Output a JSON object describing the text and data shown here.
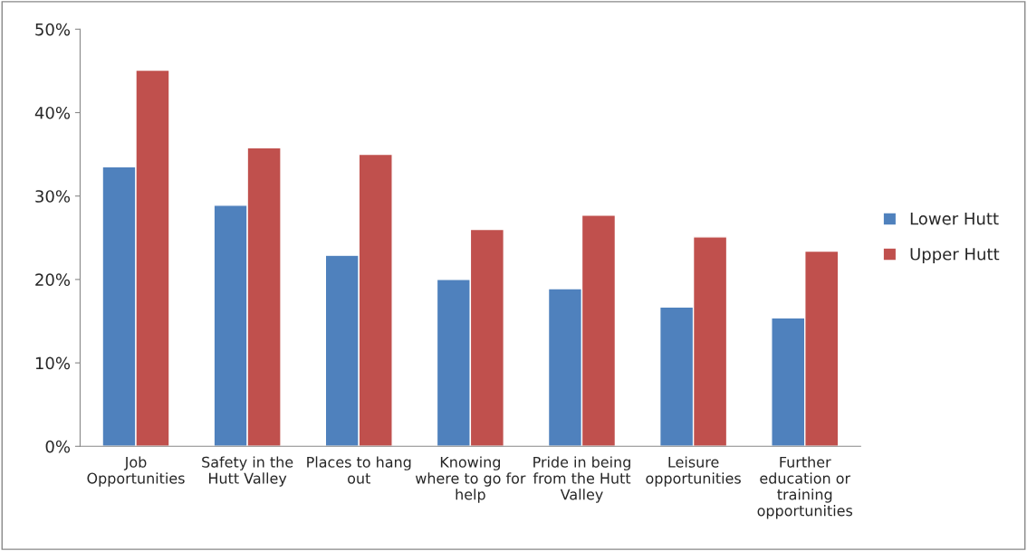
{
  "chart_data": {
    "type": "bar",
    "categories": [
      "Job\nOpportunities",
      "Safety in the\nHutt Valley",
      "Places to hang\nout",
      "Knowing\nwhere to go for\nhelp",
      "Pride in being\nfrom the Hutt\nValley",
      "Leisure\nopportunities",
      "Further\neducation or\ntraining\nopportunities"
    ],
    "series": [
      {
        "name": "Lower Hutt",
        "color": "#4f81bd",
        "values": [
          33.5,
          28.9,
          22.9,
          20.0,
          18.9,
          16.7,
          15.4
        ]
      },
      {
        "name": "Upper Hutt",
        "color": "#c0504d",
        "values": [
          45.1,
          35.8,
          35.0,
          26.0,
          27.7,
          25.1,
          23.4
        ]
      }
    ],
    "ylim": [
      0,
      50
    ],
    "yticks": [
      {
        "value": 0,
        "label": "0%"
      },
      {
        "value": 10,
        "label": "10%"
      },
      {
        "value": 20,
        "label": "20%"
      },
      {
        "value": 30,
        "label": "30%"
      },
      {
        "value": 40,
        "label": "40%"
      },
      {
        "value": 50,
        "label": "50%"
      }
    ],
    "grid": false,
    "legend": "right"
  }
}
